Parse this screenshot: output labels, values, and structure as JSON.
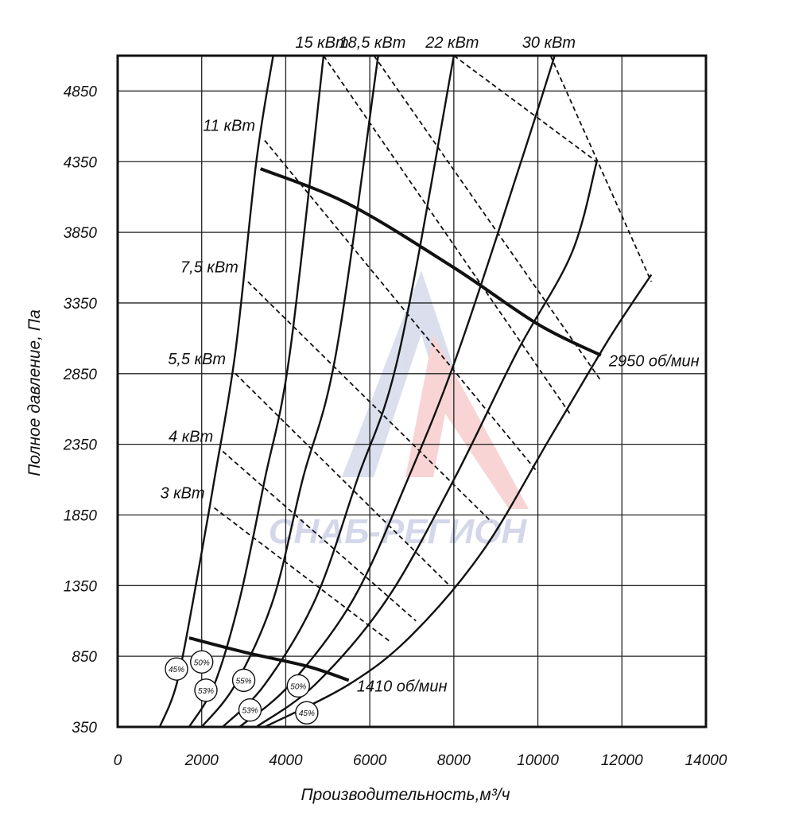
{
  "chart_data": {
    "type": "line",
    "title": "",
    "xlabel": "Производительность,м³/ч",
    "ylabel": "Полное давление, Па",
    "xlim": [
      0,
      14000
    ],
    "ylim": [
      350,
      5100
    ],
    "x_ticks": [
      0,
      2000,
      4000,
      6000,
      8000,
      10000,
      12000,
      14000
    ],
    "x_tick_labels": [
      "0",
      "2000",
      "4000",
      "6000",
      "8000",
      "10000",
      "12000",
      "14000"
    ],
    "y_ticks": [
      350,
      850,
      1350,
      1850,
      2350,
      2850,
      3350,
      3850,
      4350,
      4850
    ],
    "y_tick_labels": [
      "350",
      "850",
      "1350",
      "1850",
      "2350",
      "2850",
      "3350",
      "3850",
      "4350",
      "4850"
    ],
    "grid": true,
    "watermark": "СНАБ-РЕГИОН",
    "fan_curves": [
      {
        "points": [
          [
            1000,
            350
          ],
          [
            1400,
            650
          ],
          [
            1800,
            1250
          ],
          [
            2300,
            2100
          ],
          [
            2800,
            3000
          ],
          [
            3300,
            4350
          ],
          [
            3700,
            5100
          ]
        ]
      },
      {
        "points": [
          [
            1700,
            350
          ],
          [
            2300,
            650
          ],
          [
            2900,
            1250
          ],
          [
            3500,
            2100
          ],
          [
            4100,
            3000
          ],
          [
            4900,
            5100
          ]
        ]
      },
      {
        "points": [
          [
            2000,
            350
          ],
          [
            2800,
            650
          ],
          [
            3700,
            1250
          ],
          [
            4400,
            2100
          ],
          [
            5200,
            3000
          ],
          [
            6200,
            5100
          ]
        ]
      },
      {
        "points": [
          [
            2500,
            350
          ],
          [
            3500,
            650
          ],
          [
            4700,
            1250
          ],
          [
            5700,
            2100
          ],
          [
            6700,
            3000
          ],
          [
            8000,
            5100
          ]
        ]
      },
      {
        "points": [
          [
            2900,
            350
          ],
          [
            4100,
            650
          ],
          [
            5600,
            1250
          ],
          [
            6900,
            2100
          ],
          [
            8100,
            3000
          ],
          [
            9600,
            4350
          ],
          [
            10400,
            5100
          ]
        ]
      },
      {
        "points": [
          [
            3300,
            350
          ],
          [
            4700,
            650
          ],
          [
            6400,
            1250
          ],
          [
            8000,
            2100
          ],
          [
            9500,
            3000
          ],
          [
            10800,
            3700
          ],
          [
            11400,
            4350
          ]
        ]
      },
      {
        "points": [
          [
            3500,
            350
          ],
          [
            5500,
            650
          ],
          [
            7000,
            1000
          ],
          [
            8700,
            1600
          ],
          [
            10300,
            2400
          ],
          [
            11700,
            3100
          ],
          [
            12700,
            3550
          ]
        ]
      }
    ],
    "power_lines": [
      {
        "label": "3 кВт",
        "points": [
          [
            2300,
            1900
          ],
          [
            6500,
            950
          ]
        ]
      },
      {
        "label": "4 кВт",
        "points": [
          [
            2500,
            2300
          ],
          [
            7100,
            1100
          ]
        ]
      },
      {
        "label": "5,5 кВт",
        "points": [
          [
            2800,
            2850
          ],
          [
            7900,
            1350
          ]
        ]
      },
      {
        "label": "7,5 кВт",
        "points": [
          [
            3100,
            3500
          ],
          [
            8900,
            1800
          ]
        ]
      },
      {
        "label": "11 кВт",
        "points": [
          [
            3500,
            4500
          ],
          [
            10000,
            2150
          ]
        ]
      },
      {
        "label": "15 кВт",
        "points": [
          [
            4900,
            5100
          ],
          [
            10800,
            2550
          ]
        ]
      },
      {
        "label": "18,5 кВт",
        "points": [
          [
            6100,
            5100
          ],
          [
            11500,
            2800
          ]
        ]
      },
      {
        "label": "22 кВт",
        "points": [
          [
            8000,
            5100
          ],
          [
            11400,
            4350
          ]
        ]
      },
      {
        "label": "30 кВт",
        "points": [
          [
            10300,
            5100
          ],
          [
            12700,
            3500
          ]
        ]
      }
    ],
    "speed_lines": [
      {
        "label": "2950 об/мин",
        "points": [
          [
            3400,
            4300
          ],
          [
            5500,
            4050
          ],
          [
            8000,
            3600
          ],
          [
            10000,
            3200
          ],
          [
            11500,
            2980
          ]
        ]
      },
      {
        "label": "1410 об/мин",
        "points": [
          [
            1700,
            980
          ],
          [
            3000,
            880
          ],
          [
            4500,
            780
          ],
          [
            5500,
            680
          ]
        ]
      }
    ],
    "efficiency_markers": [
      {
        "label": "45%",
        "x": 1400,
        "y": 760
      },
      {
        "label": "50%",
        "x": 2000,
        "y": 810
      },
      {
        "label": "53%",
        "x": 2100,
        "y": 610
      },
      {
        "label": "55%",
        "x": 3000,
        "y": 680
      },
      {
        "label": "53%",
        "x": 3150,
        "y": 470
      },
      {
        "label": "50%",
        "x": 4300,
        "y": 640
      },
      {
        "label": "45%",
        "x": 4500,
        "y": 450
      }
    ]
  }
}
